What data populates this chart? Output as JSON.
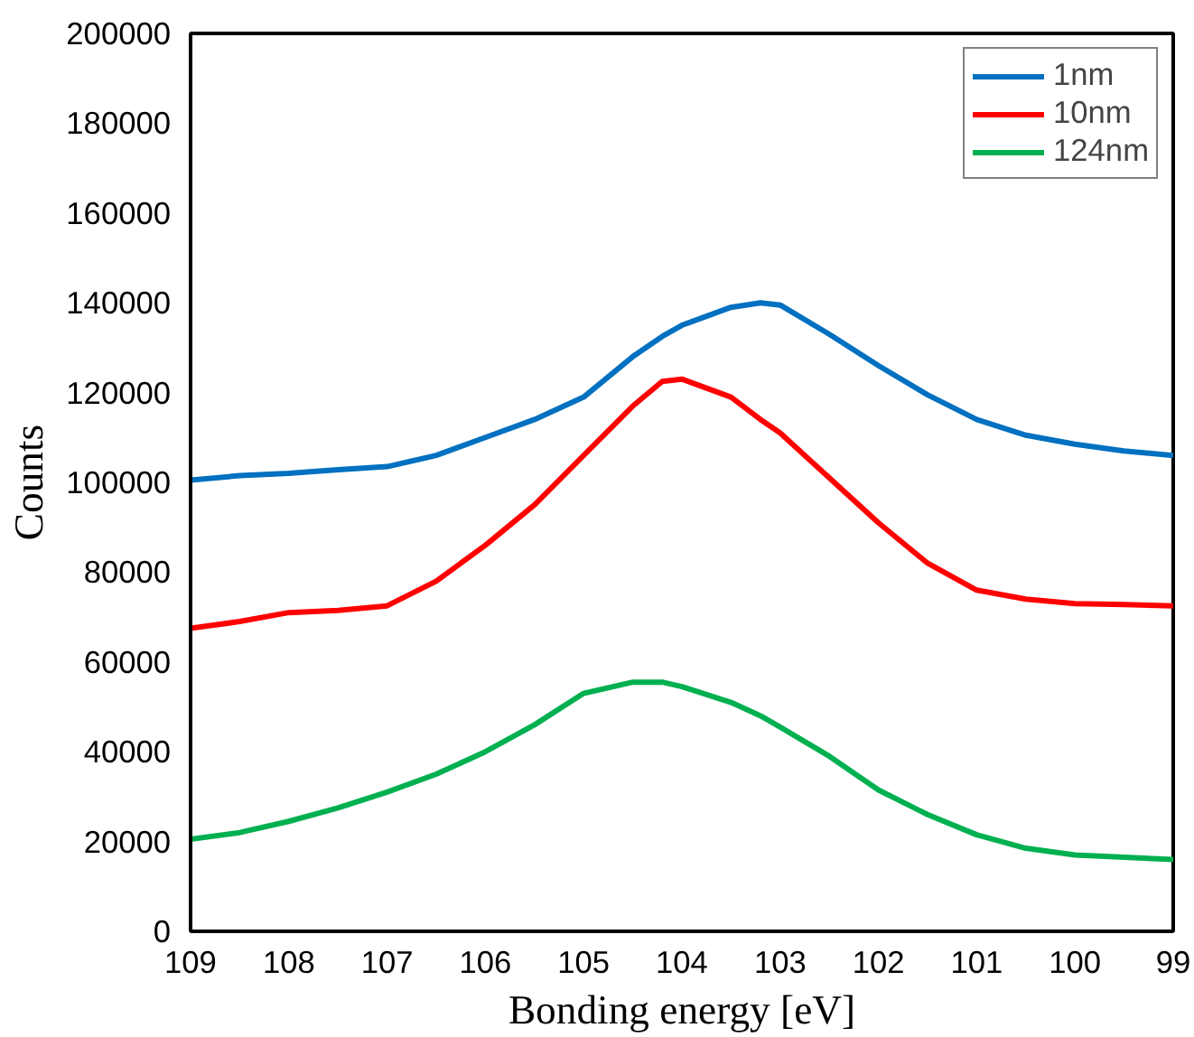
{
  "chart_data": {
    "type": "line",
    "xlabel": "Bonding energy [eV]",
    "ylabel": "Counts",
    "x": [
      109,
      108.5,
      108,
      107.5,
      107,
      106.5,
      106,
      105.5,
      105,
      104.5,
      104.2,
      104,
      103.5,
      103.2,
      103,
      102.5,
      102,
      101.5,
      101,
      100.5,
      100,
      99.5,
      99
    ],
    "series": [
      {
        "name": "1nm",
        "color": "#0070c0",
        "values": [
          100500,
          101500,
          102000,
          102800,
          103500,
          106000,
          110000,
          114000,
          119000,
          128000,
          132500,
          135000,
          139000,
          140000,
          139500,
          133000,
          126000,
          119500,
          114000,
          110500,
          108500,
          107000,
          106000
        ]
      },
      {
        "name": "10nm",
        "color": "#ff0000",
        "values": [
          67500,
          69000,
          71000,
          71500,
          72500,
          78000,
          86000,
          95000,
          106000,
          117000,
          122500,
          123000,
          119000,
          114000,
          111000,
          101000,
          91000,
          82000,
          76000,
          74000,
          73000,
          72800,
          72500
        ]
      },
      {
        "name": "124nm",
        "color": "#00b050",
        "values": [
          20500,
          22000,
          24500,
          27500,
          31000,
          35000,
          40000,
          46000,
          53000,
          55500,
          55500,
          54500,
          51000,
          48000,
          45500,
          39000,
          31500,
          26000,
          21500,
          18500,
          17000,
          16500,
          16000
        ]
      }
    ],
    "xlim": [
      109,
      99
    ],
    "ylim": [
      0,
      200000
    ],
    "xticks": [
      109,
      108,
      107,
      106,
      105,
      104,
      103,
      102,
      101,
      100,
      99
    ],
    "yticks": [
      0,
      20000,
      40000,
      60000,
      80000,
      100000,
      120000,
      140000,
      160000,
      180000,
      200000
    ],
    "grid": false,
    "legend": "top right"
  }
}
